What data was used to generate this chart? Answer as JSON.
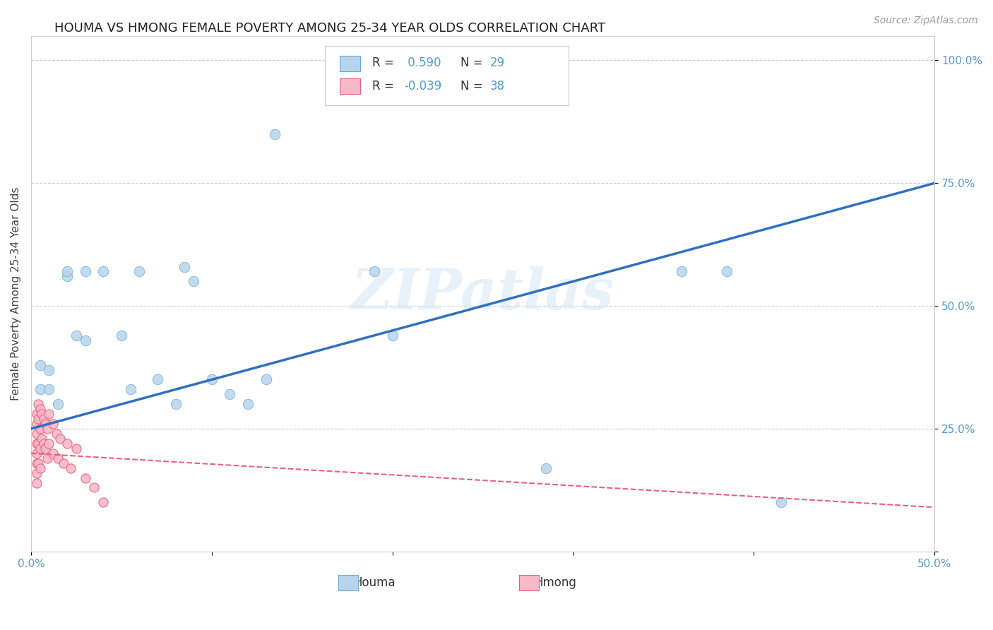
{
  "title": "HOUMA VS HMONG FEMALE POVERTY AMONG 25-34 YEAR OLDS CORRELATION CHART",
  "source": "Source: ZipAtlas.com",
  "ylabel": "Female Poverty Among 25-34 Year Olds",
  "xlim": [
    0.0,
    0.5
  ],
  "ylim": [
    0.0,
    1.05
  ],
  "houma_R": 0.59,
  "houma_N": 29,
  "hmong_R": -0.039,
  "hmong_N": 38,
  "houma_color": "#b8d4ec",
  "hmong_color": "#f9b8c8",
  "houma_edge_color": "#6aaad4",
  "hmong_edge_color": "#e8607a",
  "houma_line_color": "#3070c0",
  "hmong_line_color": "#e8607a",
  "watermark": "ZIPatlas",
  "houma_x": [
    0.005,
    0.005,
    0.01,
    0.01,
    0.015,
    0.02,
    0.02,
    0.025,
    0.03,
    0.03,
    0.04,
    0.05,
    0.055,
    0.06,
    0.07,
    0.08,
    0.085,
    0.09,
    0.1,
    0.11,
    0.12,
    0.13,
    0.135,
    0.19,
    0.2,
    0.285,
    0.36,
    0.385,
    0.415
  ],
  "houma_y": [
    0.38,
    0.33,
    0.37,
    0.33,
    0.3,
    0.56,
    0.57,
    0.44,
    0.57,
    0.43,
    0.57,
    0.44,
    0.33,
    0.57,
    0.35,
    0.3,
    0.58,
    0.55,
    0.35,
    0.32,
    0.3,
    0.35,
    0.85,
    0.57,
    0.44,
    0.17,
    0.57,
    0.57,
    0.1
  ],
  "hmong_x": [
    0.003,
    0.003,
    0.003,
    0.003,
    0.003,
    0.003,
    0.003,
    0.003,
    0.004,
    0.004,
    0.004,
    0.004,
    0.005,
    0.005,
    0.005,
    0.005,
    0.006,
    0.006,
    0.007,
    0.007,
    0.008,
    0.008,
    0.009,
    0.009,
    0.01,
    0.01,
    0.012,
    0.012,
    0.014,
    0.015,
    0.016,
    0.018,
    0.02,
    0.022,
    0.025,
    0.03,
    0.035,
    0.04
  ],
  "hmong_y": [
    0.28,
    0.26,
    0.24,
    0.22,
    0.2,
    0.18,
    0.16,
    0.14,
    0.3,
    0.27,
    0.22,
    0.18,
    0.29,
    0.25,
    0.21,
    0.17,
    0.28,
    0.23,
    0.27,
    0.22,
    0.26,
    0.21,
    0.25,
    0.19,
    0.28,
    0.22,
    0.26,
    0.2,
    0.24,
    0.19,
    0.23,
    0.18,
    0.22,
    0.17,
    0.21,
    0.15,
    0.13,
    0.1
  ],
  "grid_color": "#cccccc",
  "background_color": "#ffffff",
  "title_fontsize": 13,
  "axis_label_fontsize": 11,
  "tick_fontsize": 11,
  "legend_fontsize": 12
}
